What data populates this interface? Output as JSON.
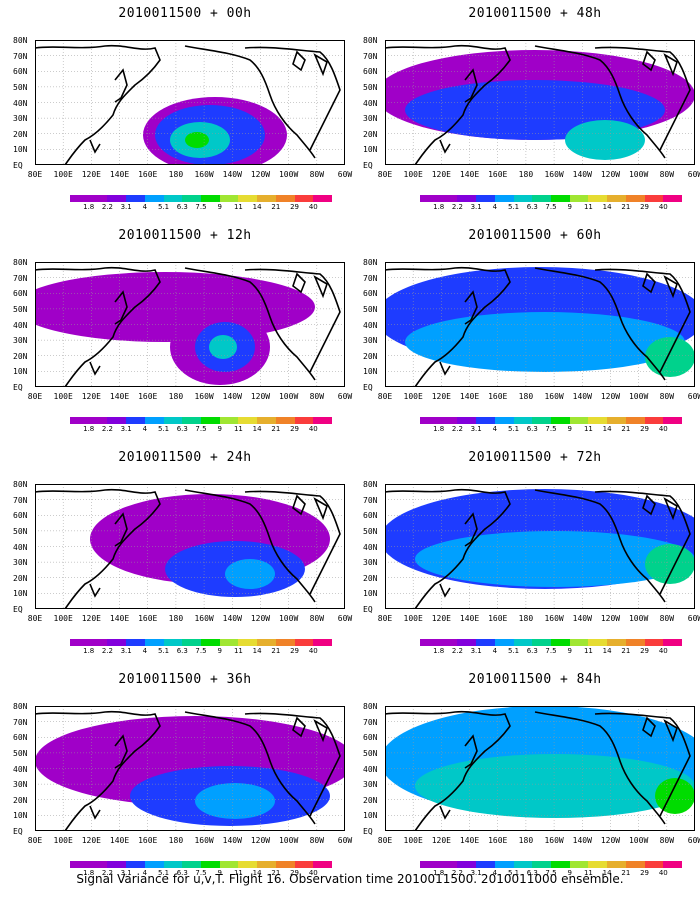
{
  "caption": "Signal Variance for u,v,T. Flight 16. Observation time 2010011500. 2010011000 ensemble.",
  "y_labels": [
    "80N",
    "70N",
    "60N",
    "50N",
    "40N",
    "30N",
    "20N",
    "10N",
    "EQ"
  ],
  "x_labels": [
    "80E",
    "100E",
    "120E",
    "140E",
    "160E",
    "180",
    "160W",
    "140W",
    "120W",
    "100W",
    "80W",
    "60W"
  ],
  "colorbar": {
    "labels": [
      "1.8",
      "2.2",
      "3.1",
      "4",
      "5.1",
      "6.3",
      "7.5",
      "9",
      "11",
      "14",
      "21",
      "29",
      "40"
    ],
    "colors": [
      "#a000c8",
      "#8200dc",
      "#1e3cff",
      "#00a0ff",
      "#00c8c8",
      "#00d28c",
      "#00dc00",
      "#a0e632",
      "#e6dc32",
      "#e6af2d",
      "#f08228",
      "#fa3c3c",
      "#f00082"
    ]
  },
  "panels": [
    {
      "title": "2010011500 + 00h"
    },
    {
      "title": "2010011500 + 48h"
    },
    {
      "title": "2010011500 + 12h"
    },
    {
      "title": "2010011500 + 60h"
    },
    {
      "title": "2010011500 + 24h"
    },
    {
      "title": "2010011500 + 72h"
    },
    {
      "title": "2010011500 + 36h"
    },
    {
      "title": "2010011500 + 84h"
    }
  ]
}
